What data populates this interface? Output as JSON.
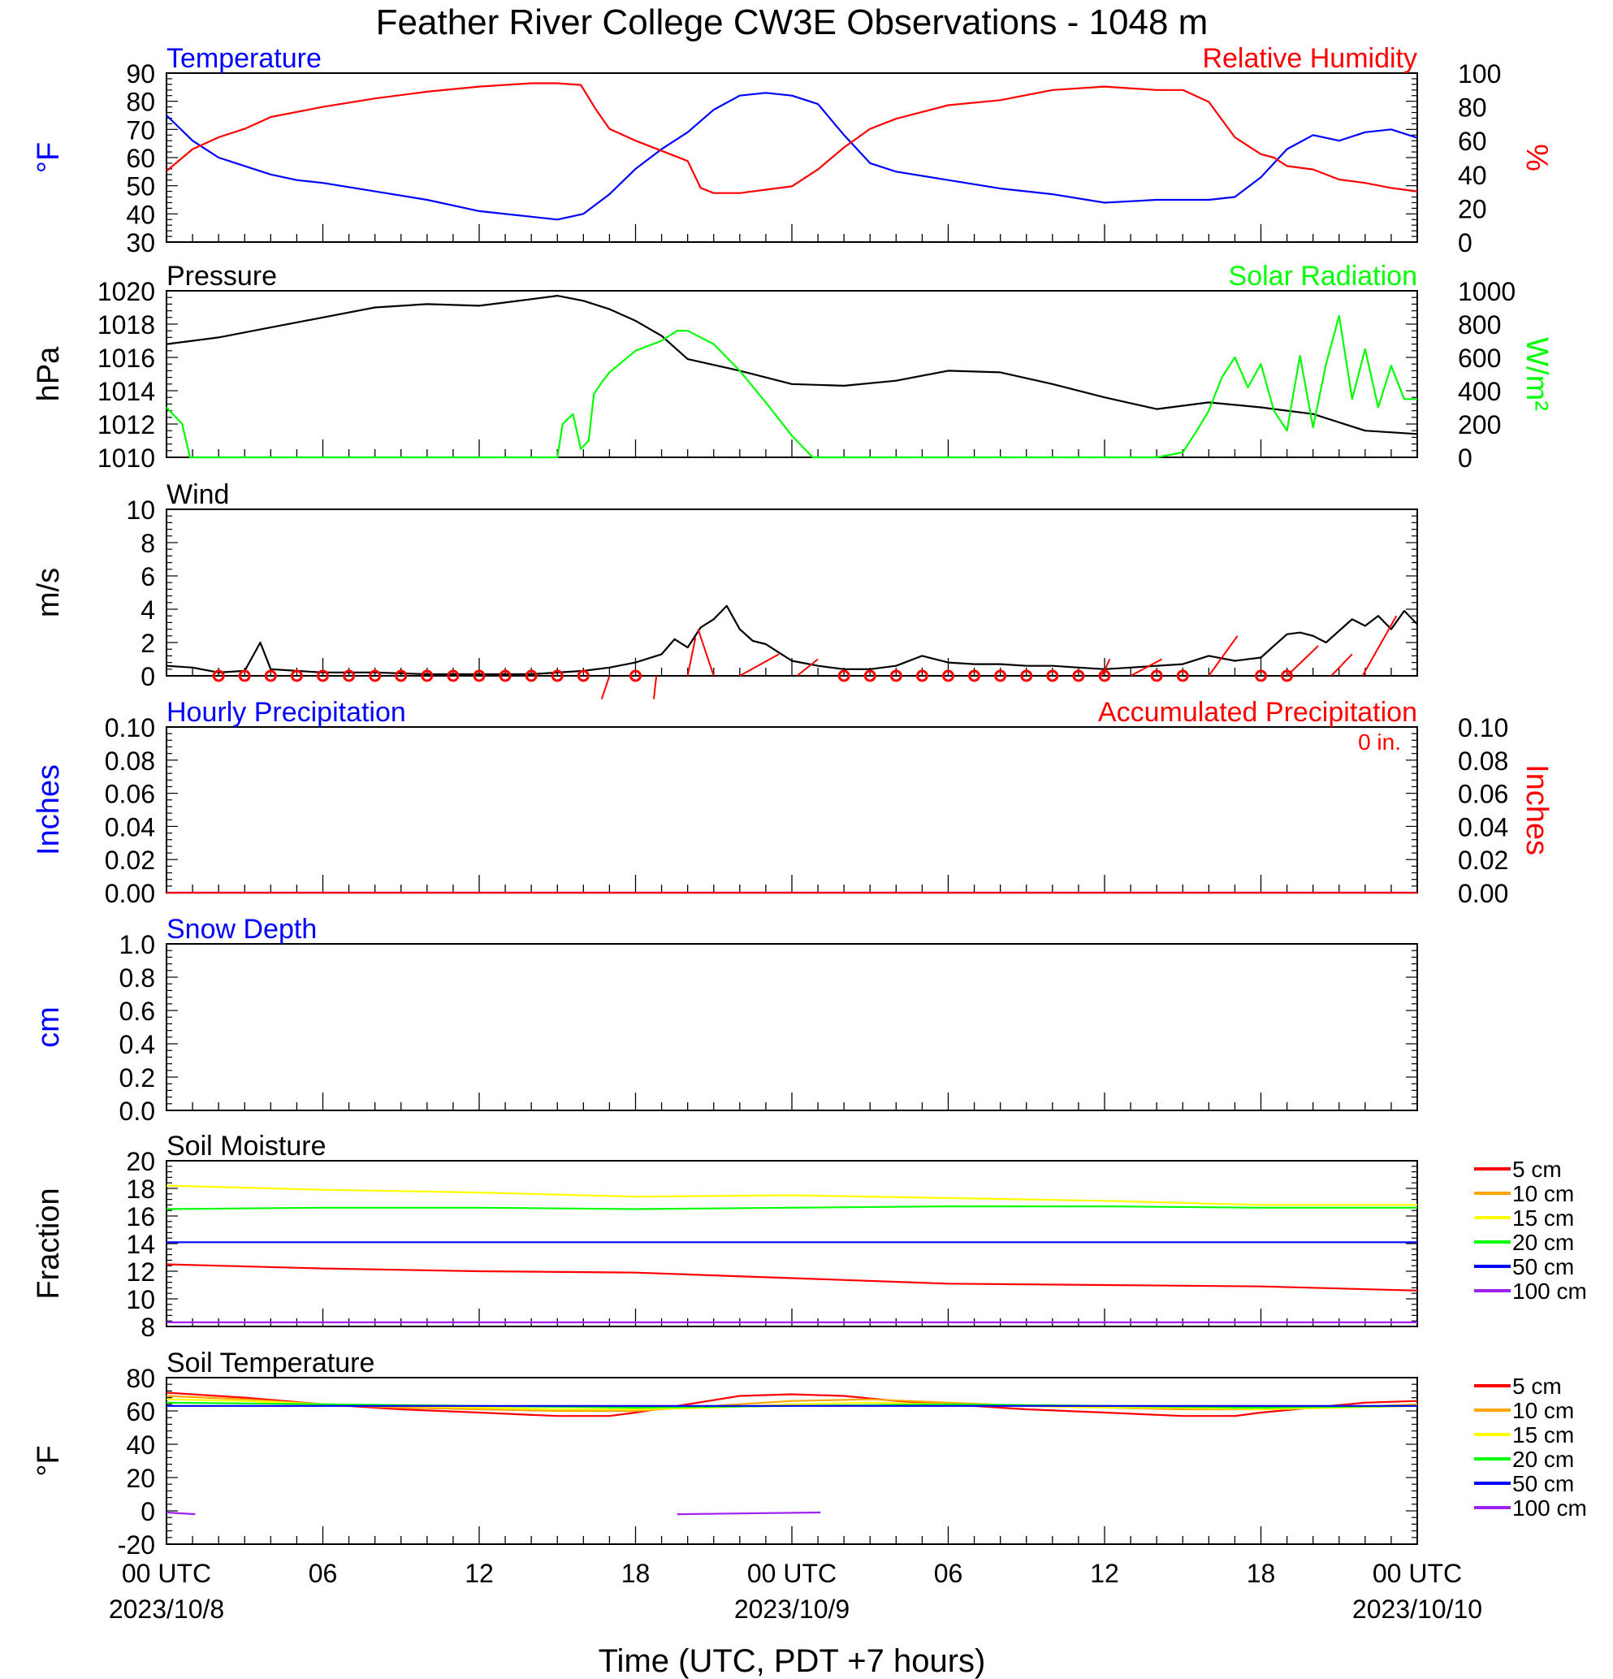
{
  "title": "Feather River College CW3E Observations - 1048 m",
  "x_axis": {
    "label": "Time (UTC, PDT +7 hours)",
    "ticks": [
      {
        "hour": 0,
        "label": "00 UTC",
        "date": "2023/10/8"
      },
      {
        "hour": 6,
        "label": "06",
        "date": ""
      },
      {
        "hour": 12,
        "label": "12",
        "date": ""
      },
      {
        "hour": 18,
        "label": "18",
        "date": ""
      },
      {
        "hour": 24,
        "label": "00 UTC",
        "date": "2023/10/9"
      },
      {
        "hour": 30,
        "label": "06",
        "date": ""
      },
      {
        "hour": 36,
        "label": "12",
        "date": ""
      },
      {
        "hour": 42,
        "label": "18",
        "date": ""
      },
      {
        "hour": 48,
        "label": "00 UTC",
        "date": "2023/10/10"
      }
    ],
    "range_hours": [
      0,
      48
    ]
  },
  "colors": {
    "red": "#ff0000",
    "blue": "#0000ff",
    "green": "#00ff00",
    "black": "#000000",
    "orange": "#ffa500",
    "yellow": "#ffff00",
    "purple": "#a020f0"
  },
  "panels": {
    "temp_rh": {
      "left_title": "Temperature",
      "right_title": "Relative Humidity",
      "left_unit": "°F",
      "right_unit": "%",
      "left_ticks": [
        "90",
        "80",
        "70",
        "60",
        "50",
        "40",
        "30"
      ],
      "right_ticks": [
        "100",
        "80",
        "60",
        "40",
        "20",
        "0"
      ]
    },
    "pressure_solar": {
      "left_title": "Pressure",
      "right_title": "Solar Radiation",
      "left_unit": "hPa",
      "right_unit": "W/m²",
      "left_ticks": [
        "1020",
        "1018",
        "1016",
        "1014",
        "1012",
        "1010"
      ],
      "right_ticks": [
        "1000",
        "800",
        "600",
        "400",
        "200",
        "0"
      ]
    },
    "wind": {
      "left_title": "Wind",
      "left_unit": "m/s",
      "left_ticks": [
        "10",
        "8",
        "6",
        "4",
        "2",
        "0"
      ]
    },
    "precip": {
      "left_title": "Hourly Precipitation",
      "right_title": "Accumulated Precipitation",
      "annotation": "0 in.",
      "left_unit": "Inches",
      "right_unit": "Inches",
      "left_ticks": [
        "0.10",
        "0.08",
        "0.06",
        "0.04",
        "0.02",
        "0.00"
      ],
      "right_ticks": [
        "0.10",
        "0.08",
        "0.06",
        "0.04",
        "0.02",
        "0.00"
      ]
    },
    "snow": {
      "left_title": "Snow Depth",
      "left_unit": "cm",
      "left_ticks": [
        "1.0",
        "0.8",
        "0.6",
        "0.4",
        "0.2",
        "0.0"
      ]
    },
    "soil_moisture": {
      "left_title": "Soil Moisture",
      "left_unit": "Fraction",
      "left_ticks": [
        "20",
        "18",
        "16",
        "14",
        "12",
        "10",
        "8"
      ],
      "legend": [
        "5 cm",
        "10 cm",
        "15 cm",
        "20 cm",
        "50 cm",
        "100 cm"
      ]
    },
    "soil_temp": {
      "left_title": "Soil Temperature",
      "left_unit": "°F",
      "left_ticks": [
        "80",
        "60",
        "40",
        "20",
        "0",
        "-20"
      ],
      "legend": [
        "5 cm",
        "10 cm",
        "15 cm",
        "20 cm",
        "50 cm",
        "100 cm"
      ]
    }
  },
  "chart_data": [
    {
      "type": "line",
      "title": "Temperature / Relative Humidity",
      "ylim": [
        30,
        90
      ],
      "y2lim": [
        0,
        100
      ],
      "series": [
        {
          "name": "Temperature",
          "axis": "left",
          "color": "#0000ff",
          "x": [
            0,
            1,
            2,
            3,
            4,
            5,
            6,
            8,
            10,
            12,
            14,
            15,
            16,
            17,
            18,
            19,
            20,
            21,
            22,
            23,
            24,
            25,
            26,
            27,
            28,
            30,
            32,
            34,
            36,
            38,
            40,
            41,
            42,
            43,
            44,
            45,
            46,
            47,
            48
          ],
          "y": [
            75,
            66,
            60,
            57,
            54,
            52,
            51,
            48,
            45,
            41,
            39,
            38,
            40,
            47,
            56,
            63,
            69,
            77,
            82,
            83,
            82,
            79,
            68,
            58,
            55,
            52,
            49,
            47,
            44,
            45,
            45,
            46,
            53,
            63,
            68,
            66,
            69,
            70,
            67
          ]
        },
        {
          "name": "Relative Humidity",
          "axis": "right",
          "color": "#ff0000",
          "x": [
            0,
            1,
            2,
            3,
            4,
            6,
            8,
            10,
            12,
            14,
            15,
            15.9,
            16.5,
            17,
            18,
            19,
            20,
            20.5,
            21,
            22,
            23,
            24,
            25,
            26,
            27,
            28,
            30,
            32,
            34,
            36,
            38,
            39,
            40,
            41,
            42,
            42.5,
            43,
            44,
            45,
            46,
            47,
            48
          ],
          "y": [
            42,
            55,
            62,
            67,
            74,
            80,
            85,
            89,
            92,
            94,
            94,
            93,
            78,
            67,
            60,
            54,
            48,
            32,
            29,
            29,
            31,
            33,
            43,
            56,
            67,
            73,
            81,
            84,
            90,
            92,
            90,
            90,
            83,
            62,
            52,
            50,
            45,
            43,
            37,
            35,
            32,
            30
          ]
        }
      ]
    },
    {
      "type": "line",
      "title": "Pressure / Solar Radiation",
      "ylim": [
        1010,
        1020
      ],
      "y2lim": [
        0,
        1000
      ],
      "series": [
        {
          "name": "Pressure",
          "axis": "left",
          "color": "#000000",
          "x": [
            0,
            2,
            4,
            6,
            8,
            10,
            12,
            14,
            15,
            16,
            17,
            18,
            19,
            20,
            22,
            24,
            26,
            28,
            30,
            32,
            34,
            36,
            38,
            40,
            42,
            44,
            46,
            48
          ],
          "y": [
            1016.8,
            1017.2,
            1017.8,
            1018.4,
            1019.0,
            1019.2,
            1019.1,
            1019.5,
            1019.7,
            1019.4,
            1018.9,
            1018.2,
            1017.3,
            1015.9,
            1015.2,
            1014.4,
            1014.3,
            1014.6,
            1015.2,
            1015.1,
            1014.4,
            1013.6,
            1012.9,
            1013.3,
            1013.0,
            1012.6,
            1011.6,
            1011.4
          ]
        },
        {
          "name": "Solar Radiation",
          "axis": "right",
          "color": "#00ff00",
          "x": [
            0,
            0.6,
            0.9,
            5,
            10,
            15,
            15.2,
            15.6,
            15.9,
            16.2,
            16.4,
            16.7,
            17,
            18,
            19,
            19.6,
            20,
            21,
            22,
            23,
            24,
            24.8,
            25,
            30,
            35,
            38,
            39,
            39.5,
            40,
            40.5,
            41,
            41.5,
            42,
            42.5,
            43,
            43.5,
            44,
            44.5,
            45,
            45.5,
            46,
            46.5,
            47,
            47.5,
            48
          ],
          "y": [
            300,
            200,
            0,
            0,
            0,
            0,
            200,
            260,
            50,
            100,
            380,
            450,
            510,
            640,
            700,
            760,
            760,
            680,
            520,
            330,
            130,
            0,
            0,
            0,
            0,
            0,
            30,
            150,
            280,
            480,
            600,
            420,
            560,
            280,
            160,
            610,
            180,
            560,
            850,
            350,
            650,
            300,
            550,
            350,
            350
          ]
        }
      ]
    },
    {
      "type": "line",
      "title": "Wind",
      "ylim": [
        0,
        10
      ],
      "series": [
        {
          "name": "Wind speed",
          "color": "#000000",
          "x": [
            0,
            1,
            2,
            3,
            3.6,
            4,
            5,
            6,
            8,
            10,
            12,
            14,
            16,
            17,
            18,
            19,
            19.5,
            20,
            20.5,
            21,
            21.5,
            22,
            22.5,
            23,
            23.5,
            24,
            25,
            26,
            27,
            28,
            29,
            30,
            31,
            32,
            33,
            34,
            35,
            36,
            37,
            38,
            39,
            40,
            41,
            42,
            42.5,
            43,
            43.5,
            44,
            44.5,
            45,
            45.5,
            46,
            46.5,
            47,
            47.5,
            48
          ],
          "y": [
            0.6,
            0.5,
            0.2,
            0.3,
            2.0,
            0.4,
            0.3,
            0.2,
            0.2,
            0.1,
            0.1,
            0.1,
            0.3,
            0.5,
            0.8,
            1.3,
            2.2,
            1.7,
            2.9,
            3.4,
            4.2,
            2.8,
            2.1,
            1.9,
            1.4,
            0.9,
            0.6,
            0.4,
            0.4,
            0.6,
            1.2,
            0.8,
            0.7,
            0.7,
            0.6,
            0.6,
            0.5,
            0.4,
            0.5,
            0.6,
            0.7,
            1.2,
            0.9,
            1.1,
            1.8,
            2.5,
            2.6,
            2.4,
            2.0,
            2.7,
            3.4,
            3.0,
            3.6,
            2.8,
            3.9,
            3.1
          ]
        }
      ],
      "calm_markers_hours": [
        2,
        3,
        4,
        5,
        6,
        7,
        8,
        9,
        10,
        11,
        12,
        13,
        14,
        15,
        16,
        18,
        26,
        27,
        28,
        29,
        30,
        31,
        32,
        33,
        34,
        35,
        36,
        38,
        39,
        42,
        43
      ],
      "barb_segments": [
        {
          "h": 17,
          "x2": 16.7,
          "y2": -1.4
        },
        {
          "h": 18.8,
          "x2": 18.7,
          "y2": -1.4
        },
        {
          "h": 20,
          "x2": 20.3,
          "y2": 2.3
        },
        {
          "h": 21,
          "x2": 20.4,
          "y2": 2.8
        },
        {
          "h": 22,
          "x2": 23.5,
          "y2": 1.3
        },
        {
          "h": 24.2,
          "x2": 25.0,
          "y2": 1.0
        },
        {
          "h": 35.9,
          "x2": 36.2,
          "y2": 1.0
        },
        {
          "h": 37,
          "x2": 38.2,
          "y2": 1.0
        },
        {
          "h": 40,
          "x2": 41.1,
          "y2": 2.4
        },
        {
          "h": 43,
          "x2": 44.2,
          "y2": 1.8
        },
        {
          "h": 44.7,
          "x2": 45.5,
          "y2": 1.3
        },
        {
          "h": 45.9,
          "x2": 47.2,
          "y2": 3.6
        }
      ]
    },
    {
      "type": "line",
      "title": "Hourly Precipitation / Accumulated Precipitation",
      "ylim": [
        0,
        0.1
      ],
      "y2lim": [
        0,
        0.1
      ],
      "series": [
        {
          "name": "Hourly Precipitation",
          "color": "#0000ff",
          "x": [
            0,
            48
          ],
          "y": [
            0,
            0
          ]
        },
        {
          "name": "Accumulated Precipitation",
          "color": "#ff0000",
          "x": [
            0,
            48
          ],
          "y": [
            0,
            0
          ]
        }
      ]
    },
    {
      "type": "line",
      "title": "Snow Depth",
      "ylim": [
        0,
        1.0
      ],
      "series": []
    },
    {
      "type": "line",
      "title": "Soil Moisture",
      "ylim": [
        8,
        20
      ],
      "series": [
        {
          "name": "5 cm",
          "color": "#ff0000",
          "x": [
            0,
            6,
            12,
            18,
            24,
            30,
            36,
            42,
            48
          ],
          "y": [
            12.5,
            12.2,
            12.0,
            11.9,
            11.5,
            11.1,
            11.0,
            10.9,
            10.6
          ]
        },
        {
          "name": "15 cm",
          "color": "#ffff00",
          "x": [
            0,
            6,
            12,
            18,
            24,
            30,
            36,
            42,
            48
          ],
          "y": [
            18.2,
            17.9,
            17.7,
            17.4,
            17.5,
            17.3,
            17.1,
            16.8,
            16.8
          ]
        },
        {
          "name": "20 cm",
          "color": "#00ff00",
          "x": [
            0,
            6,
            12,
            18,
            24,
            30,
            36,
            42,
            48
          ],
          "y": [
            16.5,
            16.6,
            16.6,
            16.5,
            16.6,
            16.7,
            16.7,
            16.6,
            16.6
          ]
        },
        {
          "name": "50 cm",
          "color": "#0000ff",
          "x": [
            0,
            48
          ],
          "y": [
            14.1,
            14.1
          ]
        },
        {
          "name": "100 cm",
          "color": "#a020f0",
          "x": [
            0,
            48
          ],
          "y": [
            8.3,
            8.3
          ]
        }
      ]
    },
    {
      "type": "line",
      "title": "Soil Temperature",
      "ylim": [
        -20,
        80
      ],
      "series": [
        {
          "name": "5 cm",
          "color": "#ff0000",
          "x": [
            0,
            3,
            6,
            9,
            12,
            15,
            17,
            18,
            20,
            22,
            24,
            26,
            28,
            30,
            33,
            36,
            39,
            41,
            42,
            44,
            46,
            48
          ],
          "y": [
            71,
            68,
            64,
            61,
            59,
            57,
            57,
            59,
            64,
            69,
            70,
            69,
            66,
            64,
            61,
            59,
            57,
            57,
            59,
            62,
            65,
            66
          ]
        },
        {
          "name": "10 cm",
          "color": "#ffa500",
          "x": [
            0,
            3,
            6,
            9,
            12,
            15,
            18,
            21,
            24,
            27,
            30,
            33,
            36,
            39,
            42,
            45,
            48
          ],
          "y": [
            69,
            67,
            64,
            62,
            61,
            60,
            60,
            63,
            66,
            67,
            65,
            63,
            62,
            61,
            61,
            62,
            64
          ]
        },
        {
          "name": "15 cm",
          "color": "#ffff00",
          "x": [
            0,
            3,
            6,
            9,
            12,
            15,
            18,
            21,
            24,
            27,
            30,
            33,
            36,
            39,
            42,
            45,
            48
          ],
          "y": [
            67,
            66,
            64,
            63,
            62,
            61,
            61,
            62,
            64,
            65,
            64,
            63,
            62,
            62,
            61,
            62,
            63
          ]
        },
        {
          "name": "20 cm",
          "color": "#00ff00",
          "x": [
            0,
            6,
            12,
            18,
            24,
            30,
            36,
            42,
            48
          ],
          "y": [
            65,
            64,
            63,
            62,
            63,
            64,
            63,
            62,
            63
          ]
        },
        {
          "name": "50 cm",
          "color": "#0000ff",
          "x": [
            0,
            48
          ],
          "y": [
            63,
            63
          ]
        },
        {
          "name": "100 cm",
          "color": "#a020f0",
          "segments": [
            {
              "x": [
                0,
                1.1
              ],
              "y": [
                -1,
                -2
              ]
            },
            {
              "x": [
                19.6,
                25.1
              ],
              "y": [
                -2,
                -1
              ]
            }
          ]
        }
      ]
    }
  ]
}
